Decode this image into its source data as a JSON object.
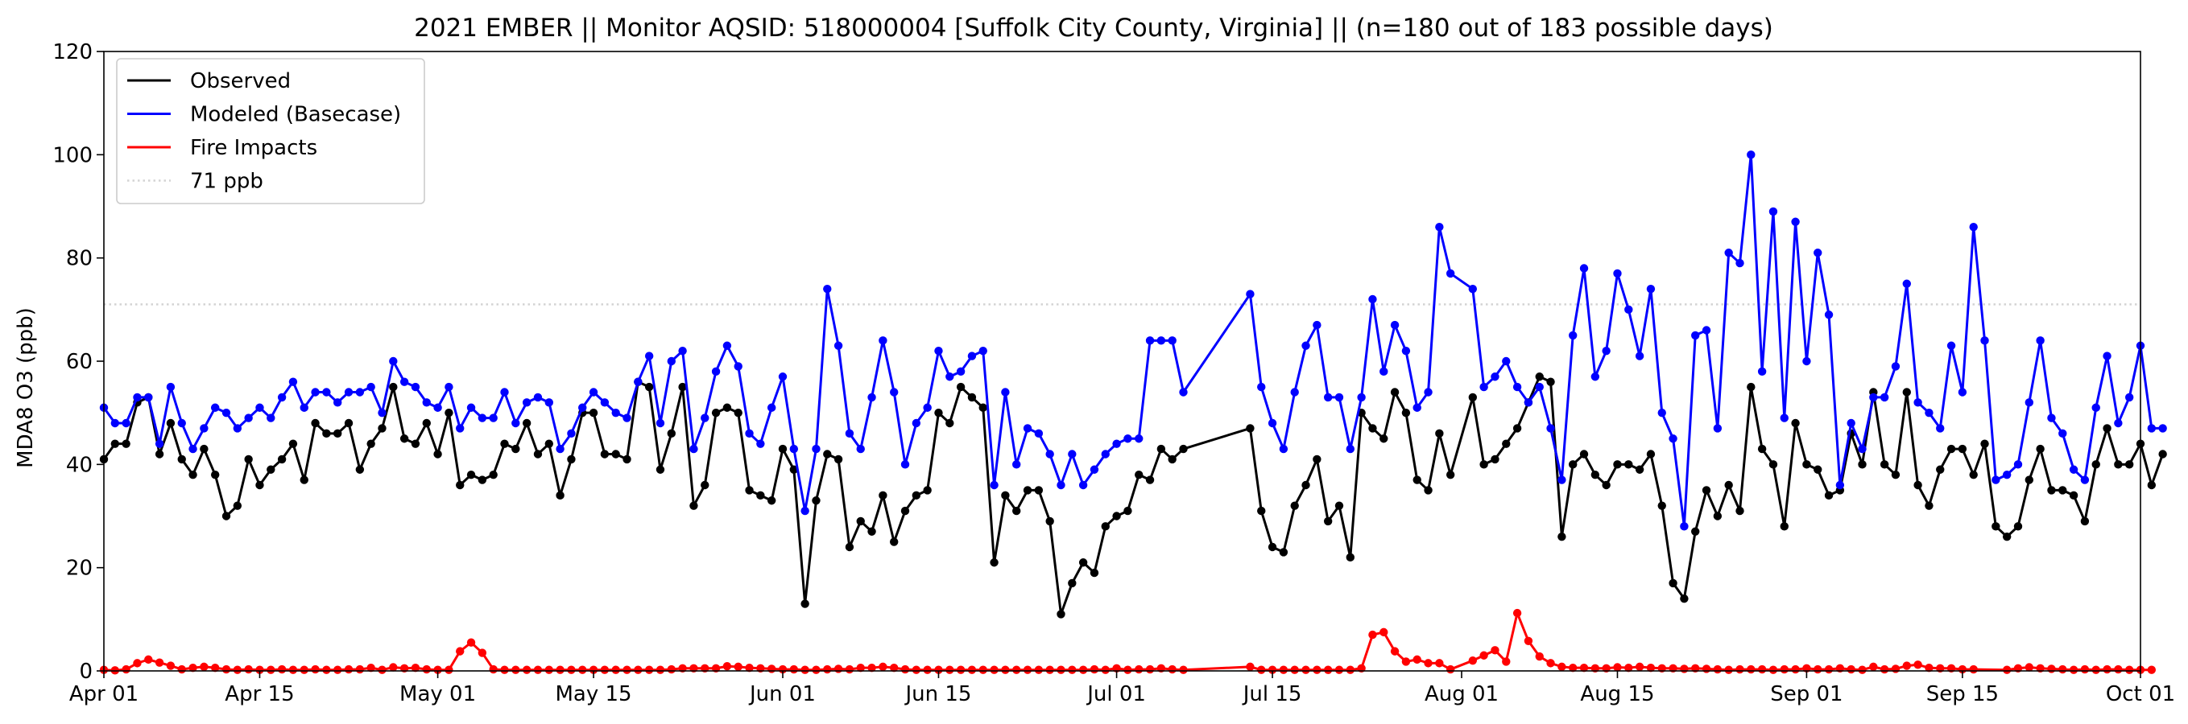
{
  "chart_data": {
    "type": "line",
    "title": "2021 EMBER || Monitor AQSID: 518000004 [Suffolk City County, Virginia] || (n=180 out of 183 possible days)",
    "xlabel": "",
    "ylabel": "MDA8 O3 (ppb)",
    "x_start": "2021-04-01",
    "x_end": "2021-10-01",
    "xlim": [
      "2021-04-01",
      "2021-10-01"
    ],
    "ylim": [
      0,
      120
    ],
    "x_tick_labels": [
      "Apr 01",
      "Apr 15",
      "May 01",
      "May 15",
      "Jun 01",
      "Jun 15",
      "Jul 01",
      "Jul 15",
      "Aug 01",
      "Aug 15",
      "Sep 01",
      "Sep 15",
      "Oct 01"
    ],
    "y_tick_labels": [
      "0",
      "20",
      "40",
      "60",
      "80",
      "100",
      "120"
    ],
    "grid": false,
    "legend_position": "upper-left",
    "reference_line": {
      "name": "71 ppb",
      "value": 71,
      "color": "#d3d3d3",
      "style": "dotted"
    },
    "series": [
      {
        "name": "Observed",
        "color": "#000000",
        "values": [
          41,
          44,
          44,
          52,
          53,
          42,
          48,
          41,
          38,
          43,
          38,
          30,
          32,
          41,
          36,
          39,
          41,
          44,
          37,
          48,
          46,
          46,
          48,
          39,
          44,
          47,
          55,
          45,
          44,
          48,
          42,
          50,
          36,
          38,
          37,
          38,
          44,
          43,
          48,
          42,
          44,
          34,
          41,
          50,
          50,
          42,
          42,
          41,
          56,
          55,
          39,
          46,
          55,
          32,
          36,
          50,
          51,
          50,
          35,
          34,
          33,
          43,
          39,
          13,
          33,
          42,
          41,
          24,
          29,
          27,
          34,
          25,
          31,
          34,
          35,
          50,
          48,
          55,
          53,
          51,
          21,
          34,
          31,
          35,
          35,
          29,
          11,
          17,
          21,
          19,
          28,
          30,
          31,
          38,
          37,
          43,
          41,
          43,
          null,
          null,
          null,
          null,
          null,
          47,
          31,
          24,
          23,
          32,
          36,
          41,
          29,
          32,
          22,
          50,
          47,
          45,
          54,
          50,
          37,
          35,
          46,
          38,
          null,
          53,
          40,
          41,
          44,
          47,
          52,
          57,
          56,
          26,
          40,
          42,
          38,
          36,
          40,
          40,
          39,
          42,
          32,
          17,
          14,
          27,
          35,
          30,
          36,
          31,
          55,
          43,
          40,
          28,
          48,
          40,
          39,
          34,
          35,
          46,
          40,
          54,
          40,
          38,
          54,
          36,
          32,
          39,
          43,
          43,
          38,
          44,
          28,
          26,
          28,
          37,
          43,
          35,
          35,
          34,
          29,
          40,
          47,
          40,
          40,
          44,
          36,
          42
        ]
      },
      {
        "name": "Modeled (Basecase)",
        "color": "#0000ff",
        "values": [
          51,
          48,
          48,
          53,
          53,
          44,
          55,
          48,
          43,
          47,
          51,
          50,
          47,
          49,
          51,
          49,
          53,
          56,
          51,
          54,
          54,
          52,
          54,
          54,
          55,
          50,
          60,
          56,
          55,
          52,
          51,
          55,
          47,
          51,
          49,
          49,
          54,
          48,
          52,
          53,
          52,
          43,
          46,
          51,
          54,
          52,
          50,
          49,
          56,
          61,
          48,
          60,
          62,
          43,
          49,
          58,
          63,
          59,
          46,
          44,
          51,
          57,
          43,
          31,
          43,
          74,
          63,
          46,
          43,
          53,
          64,
          54,
          40,
          48,
          51,
          62,
          57,
          58,
          61,
          62,
          36,
          54,
          40,
          47,
          46,
          42,
          36,
          42,
          36,
          39,
          42,
          44,
          45,
          45,
          64,
          64,
          64,
          54,
          null,
          null,
          null,
          null,
          null,
          73,
          55,
          48,
          43,
          54,
          63,
          67,
          53,
          53,
          43,
          53,
          72,
          58,
          67,
          62,
          51,
          54,
          86,
          77,
          null,
          74,
          55,
          57,
          60,
          55,
          52,
          55,
          47,
          37,
          65,
          78,
          57,
          62,
          77,
          70,
          61,
          74,
          50,
          45,
          28,
          65,
          66,
          47,
          81,
          79,
          100,
          58,
          89,
          49,
          87,
          60,
          81,
          69,
          36,
          48,
          43,
          53,
          53,
          59,
          75,
          52,
          50,
          47,
          63,
          54,
          86,
          64,
          37,
          38,
          40,
          52,
          64,
          49,
          46,
          39,
          37,
          51,
          61,
          48,
          53,
          63,
          47,
          47
        ]
      },
      {
        "name": "Fire Impacts",
        "color": "#ff0000",
        "values": [
          0.2,
          0.1,
          0.3,
          1.5,
          2.2,
          1.6,
          1.0,
          0.3,
          0.6,
          0.8,
          0.6,
          0.3,
          0.2,
          0.3,
          0.2,
          0.2,
          0.3,
          0.2,
          0.2,
          0.3,
          0.2,
          0.2,
          0.3,
          0.3,
          0.6,
          0.2,
          0.7,
          0.5,
          0.6,
          0.3,
          0.2,
          0.2,
          3.8,
          5.5,
          3.5,
          0.3,
          0.2,
          0.2,
          0.2,
          0.2,
          0.2,
          0.2,
          0.2,
          0.2,
          0.2,
          0.2,
          0.2,
          0.2,
          0.2,
          0.2,
          0.2,
          0.3,
          0.5,
          0.5,
          0.5,
          0.5,
          0.9,
          0.8,
          0.6,
          0.5,
          0.4,
          0.3,
          0.3,
          0.2,
          0.2,
          0.3,
          0.4,
          0.3,
          0.6,
          0.6,
          0.8,
          0.6,
          0.3,
          0.2,
          0.2,
          0.2,
          0.2,
          0.2,
          0.2,
          0.2,
          0.2,
          0.2,
          0.2,
          0.2,
          0.2,
          0.2,
          0.2,
          0.2,
          0.2,
          0.3,
          0.2,
          0.5,
          0.2,
          0.3,
          0.3,
          0.5,
          0.3,
          0.2,
          null,
          null,
          null,
          null,
          null,
          0.8,
          0.2,
          0.2,
          0.2,
          0.2,
          0.2,
          0.2,
          0.2,
          0.2,
          0.2,
          0.5,
          7.0,
          7.5,
          3.8,
          1.8,
          2.2,
          1.5,
          1.5,
          0.3,
          null,
          2.0,
          3.0,
          4.0,
          1.8,
          11.2,
          5.8,
          2.8,
          1.5,
          0.8,
          0.6,
          0.6,
          0.5,
          0.5,
          0.7,
          0.6,
          0.8,
          0.6,
          0.5,
          0.5,
          0.4,
          0.5,
          0.4,
          0.3,
          0.2,
          0.3,
          0.3,
          0.3,
          0.2,
          0.3,
          0.3,
          0.5,
          0.3,
          0.3,
          0.5,
          0.3,
          0.2,
          0.8,
          0.3,
          0.4,
          1.0,
          1.2,
          0.6,
          0.5,
          0.5,
          0.3,
          0.3,
          null,
          null,
          0.2,
          0.5,
          0.7,
          0.5,
          0.4,
          0.3,
          0.2,
          0.3,
          0.2,
          0.3,
          0.3,
          0.2,
          0.2,
          0.2
        ]
      }
    ]
  }
}
